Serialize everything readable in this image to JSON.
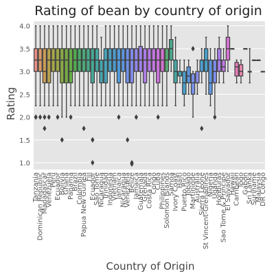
{
  "chart_data": {
    "type": "box",
    "title": "Rating of bean by country of origin",
    "xlabel": "Country of Origin",
    "ylabel": "Rating",
    "ylim": [
      0.85,
      4.1
    ],
    "yticks": [
      1.0,
      1.5,
      2.0,
      2.5,
      3.0,
      3.5,
      4.0
    ],
    "grid": true,
    "background": "#e5e5e5",
    "categories": [
      "Tanzania",
      "Dominican Republic",
      "Madagascar",
      "Venezuela",
      "Peru",
      "Ecuador",
      "Bolivia",
      "Ghana",
      "Panama",
      "Brazil",
      "Colombia",
      "Papua New Guinea",
      "Fiji",
      "Ecuador",
      "Sao Tome",
      "Nicaragua",
      "Trinidad",
      "Indonesia",
      "Vietnam",
      "Jamaica",
      "Nicaragua",
      "Venezuela",
      "Belize",
      "Jamaica",
      "Guatemala",
      "Grenada",
      "Costa Rica",
      "Congo",
      "Cuba",
      "Philippines",
      "Solomon Islands",
      "Samoa",
      "Ivory Coast",
      "Haiti",
      "Puerto Rico",
      "Tobago",
      "Martinique",
      "Australia",
      "Sierra Leone",
      "St Vincent-Grenadines",
      "Nigeria",
      "Uganda",
      "Honduras",
      "Sao Tome & Principe",
      "El Salvador",
      "Hawaii",
      "Carribean",
      "Togo",
      "Gabon",
      "Sri Lanka",
      "Suriname",
      "Malaysia",
      "DR Congo"
    ],
    "series": [
      {
        "q1": 3.0,
        "median": 3.25,
        "q3": 3.5,
        "min": 2.25,
        "max": 4.0,
        "outliers": [
          2.0,
          2.0
        ],
        "color": "#e58e88"
      },
      {
        "q1": 3.0,
        "median": 3.25,
        "q3": 3.5,
        "min": 2.25,
        "max": 4.0,
        "outliers": [
          2.0
        ],
        "color": "#dd9a6b"
      },
      {
        "q1": 2.75,
        "median": 3.0,
        "q3": 3.5,
        "min": 2.25,
        "max": 4.0,
        "outliers": [
          2.0,
          1.75
        ],
        "color": "#ca9a55"
      },
      {
        "q1": 2.75,
        "median": 3.25,
        "q3": 3.5,
        "min": 2.25,
        "max": 4.0,
        "outliers": [
          2.0
        ],
        "color": "#b9a24f"
      },
      {
        "q1": 3.0,
        "median": 3.25,
        "q3": 3.5,
        "min": 2.25,
        "max": 4.0,
        "outliers": [],
        "color": "#a8a748"
      },
      {
        "q1": 3.0,
        "median": 3.25,
        "q3": 3.5,
        "min": 2.25,
        "max": 4.0,
        "outliers": [
          2.0
        ],
        "color": "#9ba846"
      },
      {
        "q1": 2.75,
        "median": 3.25,
        "q3": 3.5,
        "min": 2.0,
        "max": 4.0,
        "outliers": [
          1.5
        ],
        "color": "#8aaa45"
      },
      {
        "q1": 2.75,
        "median": 3.25,
        "q3": 3.5,
        "min": 2.0,
        "max": 4.0,
        "outliers": [],
        "color": "#7aac45"
      },
      {
        "q1": 2.75,
        "median": 3.0,
        "q3": 3.5,
        "min": 2.25,
        "max": 4.0,
        "outliers": [
          2.0
        ],
        "color": "#66ad46"
      },
      {
        "q1": 3.0,
        "median": 3.25,
        "q3": 3.5,
        "min": 2.25,
        "max": 4.0,
        "outliers": [],
        "color": "#52ae4e"
      },
      {
        "q1": 3.0,
        "median": 3.25,
        "q3": 3.5,
        "min": 2.25,
        "max": 4.0,
        "outliers": [],
        "color": "#4aab68"
      },
      {
        "q1": 3.0,
        "median": 3.25,
        "q3": 3.5,
        "min": 2.25,
        "max": 4.0,
        "outliers": [
          1.75
        ],
        "color": "#4aab7a"
      },
      {
        "q1": 3.0,
        "median": 3.25,
        "q3": 3.5,
        "min": 2.25,
        "max": 4.0,
        "outliers": [],
        "color": "#49aa89"
      },
      {
        "q1": 2.75,
        "median": 3.25,
        "q3": 3.5,
        "min": 2.25,
        "max": 4.0,
        "outliers": [
          1.5,
          1.5,
          1.0
        ],
        "color": "#48a896"
      },
      {
        "q1": 3.0,
        "median": 3.25,
        "q3": 3.5,
        "min": 2.25,
        "max": 4.0,
        "outliers": [],
        "color": "#47a7a2"
      },
      {
        "q1": 2.75,
        "median": 3.0,
        "q3": 3.25,
        "min": 2.25,
        "max": 3.75,
        "outliers": [],
        "color": "#47a5ad"
      },
      {
        "q1": 2.75,
        "median": 3.25,
        "q3": 3.5,
        "min": 2.25,
        "max": 4.0,
        "outliers": [],
        "color": "#48a3b8"
      },
      {
        "q1": 3.0,
        "median": 3.25,
        "q3": 3.5,
        "min": 2.25,
        "max": 4.0,
        "outliers": [],
        "color": "#4aa0c3"
      },
      {
        "q1": 3.0,
        "median": 3.25,
        "q3": 3.5,
        "min": 2.25,
        "max": 4.0,
        "outliers": [],
        "color": "#4c9ccf"
      },
      {
        "q1": 2.75,
        "median": 3.25,
        "q3": 3.5,
        "min": 2.25,
        "max": 4.0,
        "outliers": [
          2.0
        ],
        "color": "#5099d8"
      },
      {
        "q1": 3.0,
        "median": 3.25,
        "q3": 3.5,
        "min": 2.25,
        "max": 4.0,
        "outliers": [],
        "color": "#5c95e0"
      },
      {
        "q1": 2.75,
        "median": 3.25,
        "q3": 3.5,
        "min": 2.25,
        "max": 4.0,
        "outliers": [
          1.5
        ],
        "color": "#6f90e5"
      },
      {
        "q1": 2.75,
        "median": 3.25,
        "q3": 3.5,
        "min": 2.25,
        "max": 4.0,
        "outliers": [
          1.0,
          0.97
        ],
        "color": "#838be8"
      },
      {
        "q1": 3.0,
        "median": 3.25,
        "q3": 3.5,
        "min": 2.25,
        "max": 4.0,
        "outliers": [
          2.0
        ],
        "color": "#9486e9"
      },
      {
        "q1": 3.0,
        "median": 3.25,
        "q3": 3.55,
        "min": 2.25,
        "max": 4.0,
        "outliers": [],
        "color": "#a181e9"
      },
      {
        "q1": 2.75,
        "median": 3.25,
        "q3": 3.5,
        "min": 2.25,
        "max": 4.0,
        "outliers": [],
        "color": "#ad7de8"
      },
      {
        "q1": 3.0,
        "median": 3.25,
        "q3": 3.5,
        "min": 2.25,
        "max": 4.0,
        "outliers": [],
        "color": "#b879e6"
      },
      {
        "q1": 3.0,
        "median": 3.25,
        "q3": 3.5,
        "min": 2.25,
        "max": 4.0,
        "outliers": [],
        "color": "#c277e3"
      },
      {
        "q1": 2.75,
        "median": 3.25,
        "q3": 3.5,
        "min": 2.25,
        "max": 4.0,
        "outliers": [
          2.0
        ],
        "color": "#cc74dc"
      },
      {
        "q1": 3.0,
        "median": 3.25,
        "q3": 3.5,
        "min": 2.25,
        "max": 4.0,
        "outliers": [],
        "color": "#d672d3"
      },
      {
        "q1": 3.0,
        "median": 3.25,
        "q3": 3.5,
        "min": 2.25,
        "max": 4.0,
        "outliers": [],
        "color": "#5aa874"
      },
      {
        "q1": 3.25,
        "median": 3.5,
        "q3": 3.7,
        "min": 3.0,
        "max": 4.0,
        "outliers": [],
        "color": "#4aa88b"
      },
      {
        "q1": 2.75,
        "median": 3.0,
        "q3": 3.25,
        "min": 2.25,
        "max": 3.75,
        "outliers": [],
        "color": "#47a7a2"
      },
      {
        "q1": 2.9,
        "median": 3.0,
        "q3": 3.0,
        "min": 2.75,
        "max": 3.25,
        "outliers": [],
        "color": "#48a4b6"
      },
      {
        "q1": 2.5,
        "median": 2.75,
        "q3": 3.0,
        "min": 2.25,
        "max": 3.25,
        "outliers": [],
        "color": "#4b9fcb"
      },
      {
        "q1": 2.75,
        "median": 2.9,
        "q3": 3.1,
        "min": 2.5,
        "max": 3.25,
        "outliers": [],
        "color": "#5c97dd"
      },
      {
        "q1": 2.5,
        "median": 2.75,
        "q3": 2.95,
        "min": 2.0,
        "max": 3.0,
        "outliers": [
          3.5
        ],
        "color": "#7890e6"
      },
      {
        "q1": 2.75,
        "median": 2.75,
        "q3": 3.0,
        "min": 2.5,
        "max": 3.25,
        "outliers": [],
        "color": "#8a8ae8"
      },
      {
        "q1": 3.0,
        "median": 3.25,
        "q3": 3.25,
        "min": 2.75,
        "max": 3.5,
        "outliers": [
          1.75
        ],
        "color": "#4c9dcf"
      },
      {
        "q1": 3.0,
        "median": 3.25,
        "q3": 3.5,
        "min": 2.5,
        "max": 3.75,
        "outliers": [],
        "color": "#4a9fc9"
      },
      {
        "q1": 2.5,
        "median": 2.75,
        "q3": 3.25,
        "min": 2.25,
        "max": 3.5,
        "outliers": [],
        "color": "#5e95de"
      },
      {
        "q1": 2.75,
        "median": 3.0,
        "q3": 3.25,
        "min": 2.0,
        "max": 3.5,
        "outliers": [
          2.0
        ],
        "color": "#7d8ee7"
      },
      {
        "q1": 3.0,
        "median": 3.25,
        "q3": 3.5,
        "min": 2.75,
        "max": 3.75,
        "outliers": [],
        "color": "#a87fe8"
      },
      {
        "q1": 3.0,
        "median": 3.1,
        "q3": 3.25,
        "min": 2.75,
        "max": 3.5,
        "outliers": [],
        "color": "#c077e4"
      },
      {
        "q1": 3.25,
        "median": 3.5,
        "q3": 3.75,
        "min": 3.0,
        "max": 4.0,
        "outliers": [],
        "color": "#d672d3"
      },
      {
        "q1": 3.5,
        "median": 3.5,
        "q3": 3.5,
        "min": 3.5,
        "max": 3.5,
        "outliers": [],
        "color": "#e177c6"
      },
      {
        "q1": 2.9,
        "median": 3.1,
        "q3": 3.2,
        "min": 2.75,
        "max": 3.25,
        "outliers": [],
        "color": "#e27cb8"
      },
      {
        "q1": 2.9,
        "median": 3.0,
        "q3": 3.15,
        "min": 2.75,
        "max": 3.25,
        "outliers": [],
        "color": "#e184aa"
      },
      {
        "q1": 3.5,
        "median": 3.5,
        "q3": 3.5,
        "min": 3.5,
        "max": 3.5,
        "outliers": [],
        "color": "#de8a9c"
      },
      {
        "q1": 3.0,
        "median": 3.0,
        "q3": 3.0,
        "min": 2.75,
        "max": 3.5,
        "outliers": [],
        "color": "#dd8f8f"
      },
      {
        "q1": 3.25,
        "median": 3.25,
        "q3": 3.25,
        "min": 3.25,
        "max": 3.25,
        "outliers": [],
        "color": "#db9384"
      },
      {
        "q1": 3.25,
        "median": 3.25,
        "q3": 3.25,
        "min": 3.25,
        "max": 3.25,
        "outliers": [],
        "color": "#d8977b"
      },
      {
        "q1": 3.0,
        "median": 3.0,
        "q3": 3.0,
        "min": 3.0,
        "max": 3.0,
        "outliers": [],
        "color": "#d69a73"
      }
    ]
  }
}
